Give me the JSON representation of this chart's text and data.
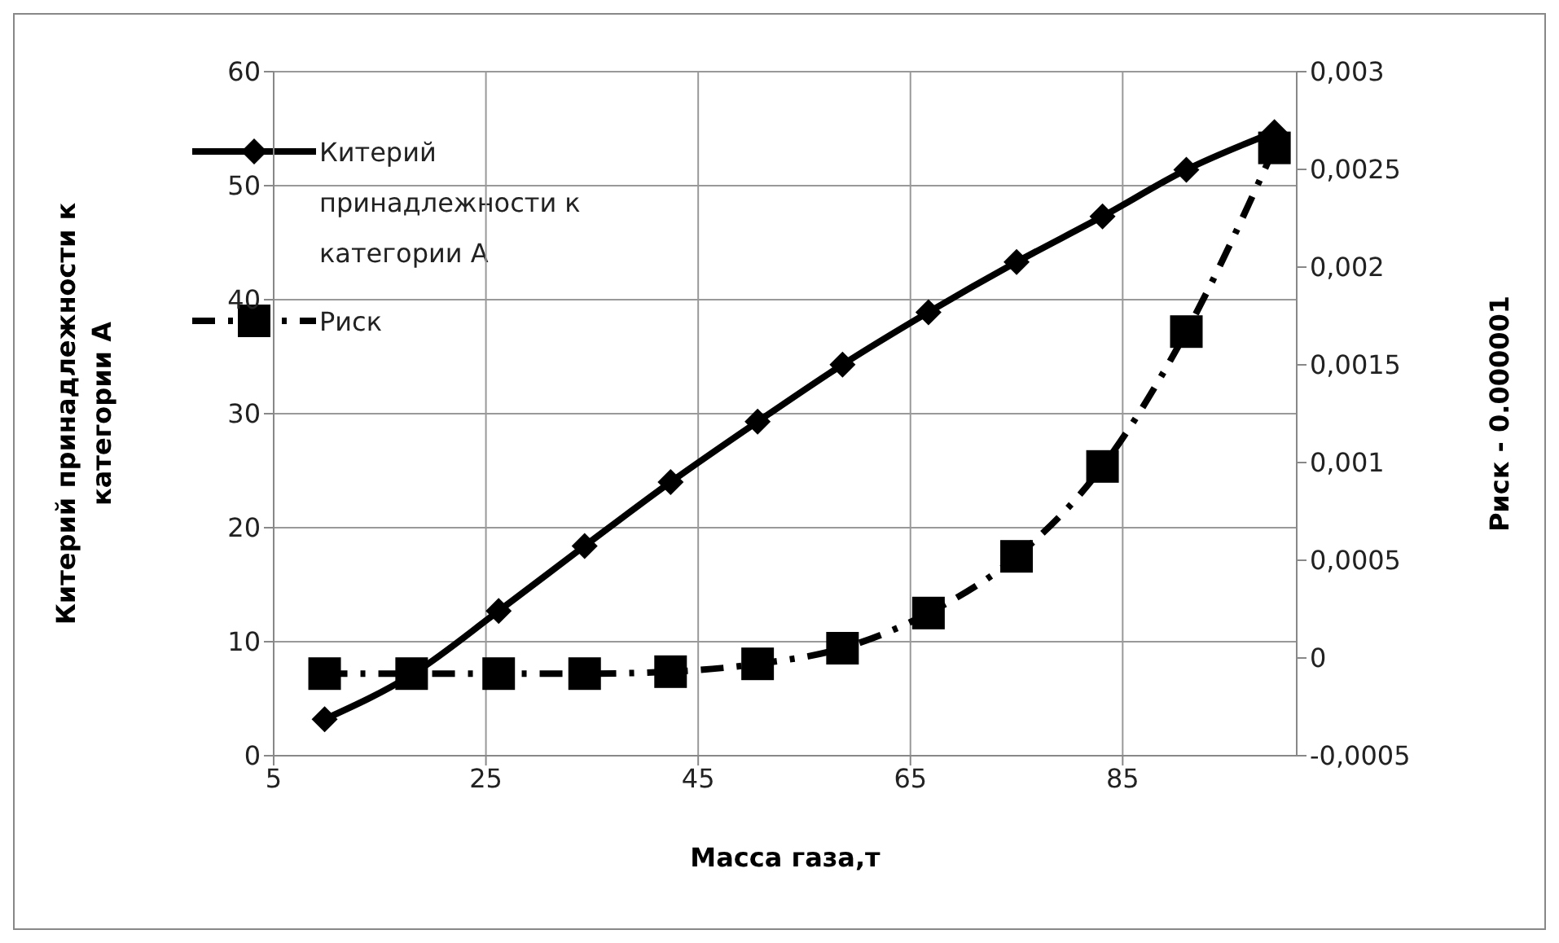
{
  "chart_data": {
    "type": "line",
    "xlabel": "Масса газа,т",
    "ylabel": "Китерий принадлежности к категории А",
    "y2label": "Риск - 0.000001",
    "x": [
      9.8,
      18,
      26.2,
      34.3,
      42.4,
      50.6,
      58.6,
      66.7,
      75,
      83.1,
      91,
      99.3
    ],
    "series": [
      {
        "name": "Китерий принадлежности к категории А",
        "color": "#000000",
        "marker": "diamond",
        "line_style": "solid",
        "values": [
          3.2,
          7.1,
          12.7,
          18.4,
          24,
          29.3,
          34.3,
          38.9,
          43.3,
          47.3,
          51.4,
          54.7
        ]
      },
      {
        "name": "Риск",
        "color": "#000000",
        "marker": "square",
        "line_style": "dashed",
        "axis": "y2",
        "values": [
          -8e-05,
          -8e-05,
          -8e-05,
          -8e-05,
          -7e-05,
          -3e-05,
          5e-05,
          0.00023,
          0.00052,
          0.00098,
          0.00167,
          0.00261
        ]
      }
    ],
    "xlim": [
      5,
      101.4
    ],
    "xticks": [
      5,
      25,
      45,
      65,
      85
    ],
    "ylim": [
      0,
      60
    ],
    "yticks": [
      0,
      10,
      20,
      30,
      40,
      50,
      60
    ],
    "y2lim": [
      -0.0005,
      0.003
    ],
    "y2ticks": [
      {
        "value": -0.0005,
        "label": "-0,0005"
      },
      {
        "value": 0,
        "label": "0"
      },
      {
        "value": 0.0005,
        "label": "0,0005"
      },
      {
        "value": 0.001,
        "label": "0,001"
      },
      {
        "value": 0.0015,
        "label": "0,0015"
      },
      {
        "value": 0.002,
        "label": "0,002"
      },
      {
        "value": 0.0025,
        "label": "0,0025"
      },
      {
        "value": 0.003,
        "label": "0,003"
      }
    ],
    "grid": true,
    "legend": "top left"
  }
}
